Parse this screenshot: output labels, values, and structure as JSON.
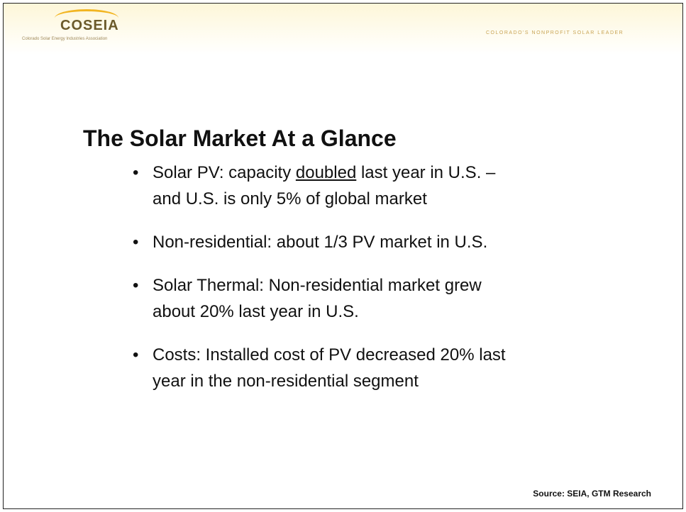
{
  "header": {
    "logo": "COSEIA",
    "org_name": "Colorado Solar Energy Industries Association",
    "tagline": "COLORADO'S NONPROFIT SOLAR LEADER"
  },
  "title": "The Solar Market At a Glance",
  "bullets": [
    {
      "before": "Solar PV: capacity ",
      "underlined": "doubled",
      "after": " last year in U.S. – and U.S. is only 5% of global market"
    },
    "Non-residential: about 1/3 PV market in U.S.",
    "Solar Thermal: Non-residential market grew about 20% last year in U.S.",
    "Costs: Installed cost of PV decreased 20% last year in the non-residential segment"
  ],
  "source": "Source:  SEIA, GTM Research"
}
